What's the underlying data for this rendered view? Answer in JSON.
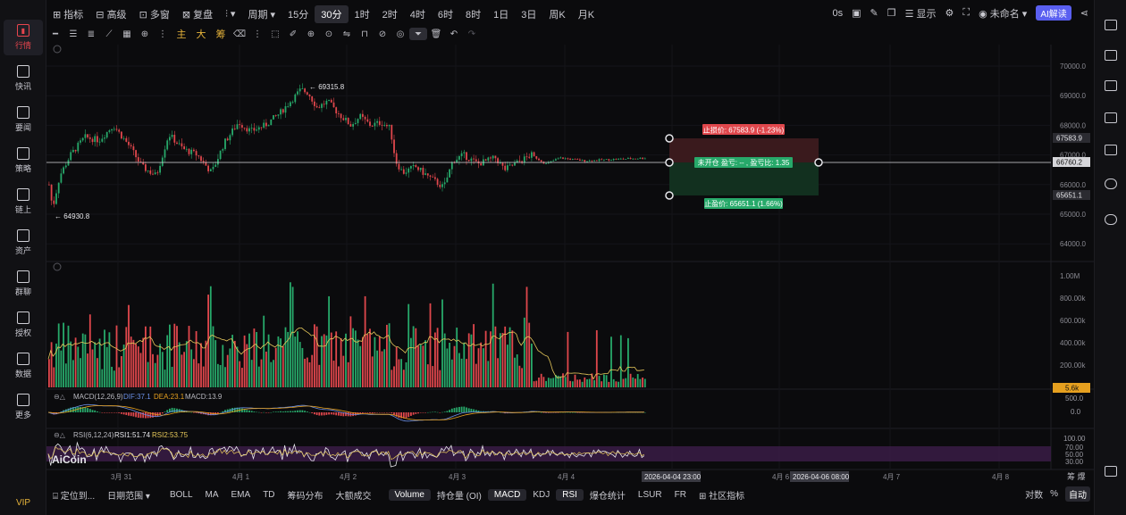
{
  "sidebar": {
    "items": [
      {
        "label": "行情",
        "icon": "bar-chart-icon",
        "active": true
      },
      {
        "label": "快讯",
        "icon": "news-flash-icon"
      },
      {
        "label": "要闻",
        "icon": "document-icon"
      },
      {
        "label": "策略",
        "icon": "robot-icon"
      },
      {
        "label": "链上",
        "icon": "chain-icon"
      },
      {
        "label": "资产",
        "icon": "wallet-icon"
      },
      {
        "label": "群聊",
        "icon": "chat-icon"
      },
      {
        "label": "授权",
        "icon": "authorize-icon"
      },
      {
        "label": "数据",
        "icon": "data-monitor-icon"
      },
      {
        "label": "更多",
        "icon": "more-grid-icon"
      }
    ],
    "vip": "VIP"
  },
  "topbar": {
    "left": [
      "指标",
      "高级",
      "多窗",
      "复盘"
    ],
    "period_label": "周期",
    "intervals": [
      "15分",
      "30分",
      "1时",
      "2时",
      "4时",
      "6时",
      "8时",
      "1日",
      "3日",
      "周K",
      "月K"
    ],
    "selected_interval": "30分",
    "countdown": "0s",
    "display_label": "显示",
    "layout_name": "未命名",
    "ai_label": "AI解读"
  },
  "drawbar": {
    "zh_tools": [
      "主",
      "大",
      "筹"
    ]
  },
  "price_axis": {
    "labels": [
      "70000.0",
      "69000.0",
      "68000.0",
      "67000.0",
      "66000.0",
      "65000.0",
      "64000.0"
    ],
    "tag_stop_loss": "67583.9",
    "tag_current": "66760.2",
    "tag_take_profit": "65651.1"
  },
  "annotations": {
    "high": "← 69315.8",
    "low": "← 64930.8"
  },
  "position_tool": {
    "stop_loss": "止损价: 67583.9 (-1.23%)",
    "status": "未开仓 盈亏: -- , 盈亏比: 1.35",
    "take_profit": "止盈价: 65651.1 (1.66%)",
    "colors": {
      "stop": "#e0474c",
      "take": "#27a96a",
      "stop_zone": "#3a1a1d",
      "take_zone": "#12301f"
    }
  },
  "volume_axis": {
    "labels": [
      "1.00M",
      "800.00k",
      "600.00k",
      "400.00k",
      "200.00k"
    ],
    "current": "5.6k"
  },
  "macd": {
    "title": "MACD(12,26,9)",
    "dif": "DIF:37.1",
    "dea": "DEA:23.1",
    "macd": "MACD:13.9",
    "axis": [
      "500.0",
      "0.0"
    ]
  },
  "rsi": {
    "title": "RSI(6,12,24)",
    "rsi1": "RSI1:51.74",
    "rsi2": "RSI2:53.75",
    "axis": [
      "100.00",
      "70.00",
      "50.00",
      "30.00"
    ]
  },
  "watermark": "AiCoin",
  "time_axis": {
    "labels": [
      "3月 31",
      "4月 1",
      "4月 2",
      "4月 3",
      "4月 4",
      "4月 5",
      "4月 6",
      "4月 7",
      "4月 8"
    ],
    "crosshair_start": "2026-04-04 23:00",
    "crosshair_end": "2026-04-06 08:00",
    "corner": "筹 爆"
  },
  "bottombar": {
    "left": [
      "定位到...",
      "日期范围"
    ],
    "indicators": [
      "BOLL",
      "MA",
      "EMA",
      "TD",
      "筹码分布",
      "大额成交"
    ],
    "sub_indicators": [
      "Volume",
      "持仓量 (OI)",
      "MACD",
      "KDJ",
      "RSI",
      "爆仓统计",
      "LSUR",
      "FR",
      "社区指标"
    ],
    "selected": [
      "Volume",
      "MACD",
      "RSI"
    ],
    "right": [
      "对数",
      "%",
      "自动"
    ]
  },
  "colors": {
    "up": "#27a96a",
    "down": "#e0474c",
    "accent": "#e6b33a",
    "background": "#0b0b0d"
  }
}
